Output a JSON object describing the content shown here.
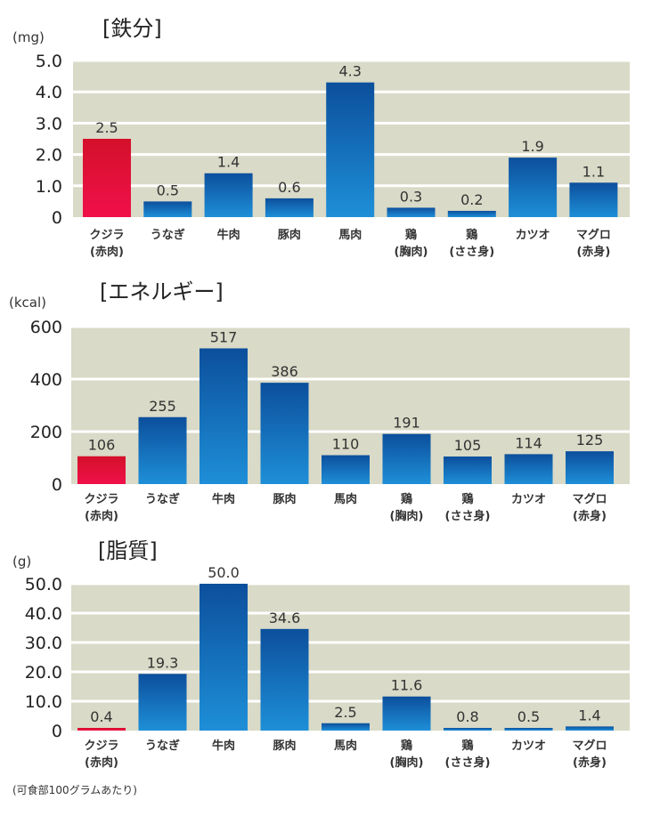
{
  "chart_data": [
    {
      "type": "bar",
      "title": "[鉄分]",
      "ylabel": "(mg)",
      "categories": [
        [
          "クジラ",
          "(赤肉)"
        ],
        [
          "うなぎ",
          ""
        ],
        [
          "牛肉",
          ""
        ],
        [
          "豚肉",
          ""
        ],
        [
          "馬肉",
          ""
        ],
        [
          "鶏",
          "(胸肉)"
        ],
        [
          "鶏",
          "(ささ身)"
        ],
        [
          "カツオ",
          ""
        ],
        [
          "マグロ",
          "(赤身)"
        ]
      ],
      "values": [
        2.5,
        0.5,
        1.4,
        0.6,
        4.3,
        0.3,
        0.2,
        1.9,
        1.1
      ],
      "value_labels": [
        "2.5",
        "0.5",
        "1.4",
        "0.6",
        "4.3",
        "0.3",
        "0.2",
        "1.9",
        "1.1"
      ],
      "yticks": [
        0,
        1,
        2,
        3,
        4,
        5
      ],
      "ytick_labels": [
        "0",
        "1.0",
        "2.0",
        "3.0",
        "4.0",
        "5.0"
      ],
      "ylim": [
        0,
        5
      ],
      "highlight_index": 0,
      "grid": true
    },
    {
      "type": "bar",
      "title": "[エネルギー]",
      "ylabel": "(kcal)",
      "categories": [
        [
          "クジラ",
          "(赤肉)"
        ],
        [
          "うなぎ",
          ""
        ],
        [
          "牛肉",
          ""
        ],
        [
          "豚肉",
          ""
        ],
        [
          "馬肉",
          ""
        ],
        [
          "鶏",
          "(胸肉)"
        ],
        [
          "鶏",
          "(ささ身)"
        ],
        [
          "カツオ",
          ""
        ],
        [
          "マグロ",
          "(赤身)"
        ]
      ],
      "values": [
        106,
        255,
        517,
        386,
        110,
        191,
        105,
        114,
        125
      ],
      "value_labels": [
        "106",
        "255",
        "517",
        "386",
        "110",
        "191",
        "105",
        "114",
        "125"
      ],
      "yticks": [
        0,
        200,
        400,
        600
      ],
      "ytick_labels": [
        "0",
        "200",
        "400",
        "600"
      ],
      "ylim": [
        0,
        600
      ],
      "highlight_index": 0,
      "grid": true
    },
    {
      "type": "bar",
      "title": "[脂質]",
      "ylabel": "(g)",
      "categories": [
        [
          "クジラ",
          "(赤肉)"
        ],
        [
          "うなぎ",
          ""
        ],
        [
          "牛肉",
          ""
        ],
        [
          "豚肉",
          ""
        ],
        [
          "馬肉",
          ""
        ],
        [
          "鶏",
          "(胸肉)"
        ],
        [
          "鶏",
          "(ささ身)"
        ],
        [
          "カツオ",
          ""
        ],
        [
          "マグロ",
          "(赤身)"
        ]
      ],
      "values": [
        0.4,
        19.3,
        50.0,
        34.6,
        2.5,
        11.6,
        0.8,
        0.5,
        1.4
      ],
      "value_labels": [
        "0.4",
        "19.3",
        "50.0",
        "34.6",
        "2.5",
        "11.6",
        "0.8",
        "0.5",
        "1.4"
      ],
      "yticks": [
        0,
        10,
        20,
        30,
        40,
        50
      ],
      "ytick_labels": [
        "0",
        "10.0",
        "20.0",
        "30.0",
        "40.0",
        "50.0"
      ],
      "ylim": [
        0,
        50
      ],
      "highlight_index": 0,
      "grid": true
    }
  ],
  "footnote": "(可食部100グラムあたり)",
  "colors": {
    "plot_bg": "#d9dac7",
    "bar_top": "#0c4f9c",
    "bar_bottom": "#1e8fd8",
    "highlight_top": "#d4102a",
    "highlight_bottom": "#f0104a"
  }
}
